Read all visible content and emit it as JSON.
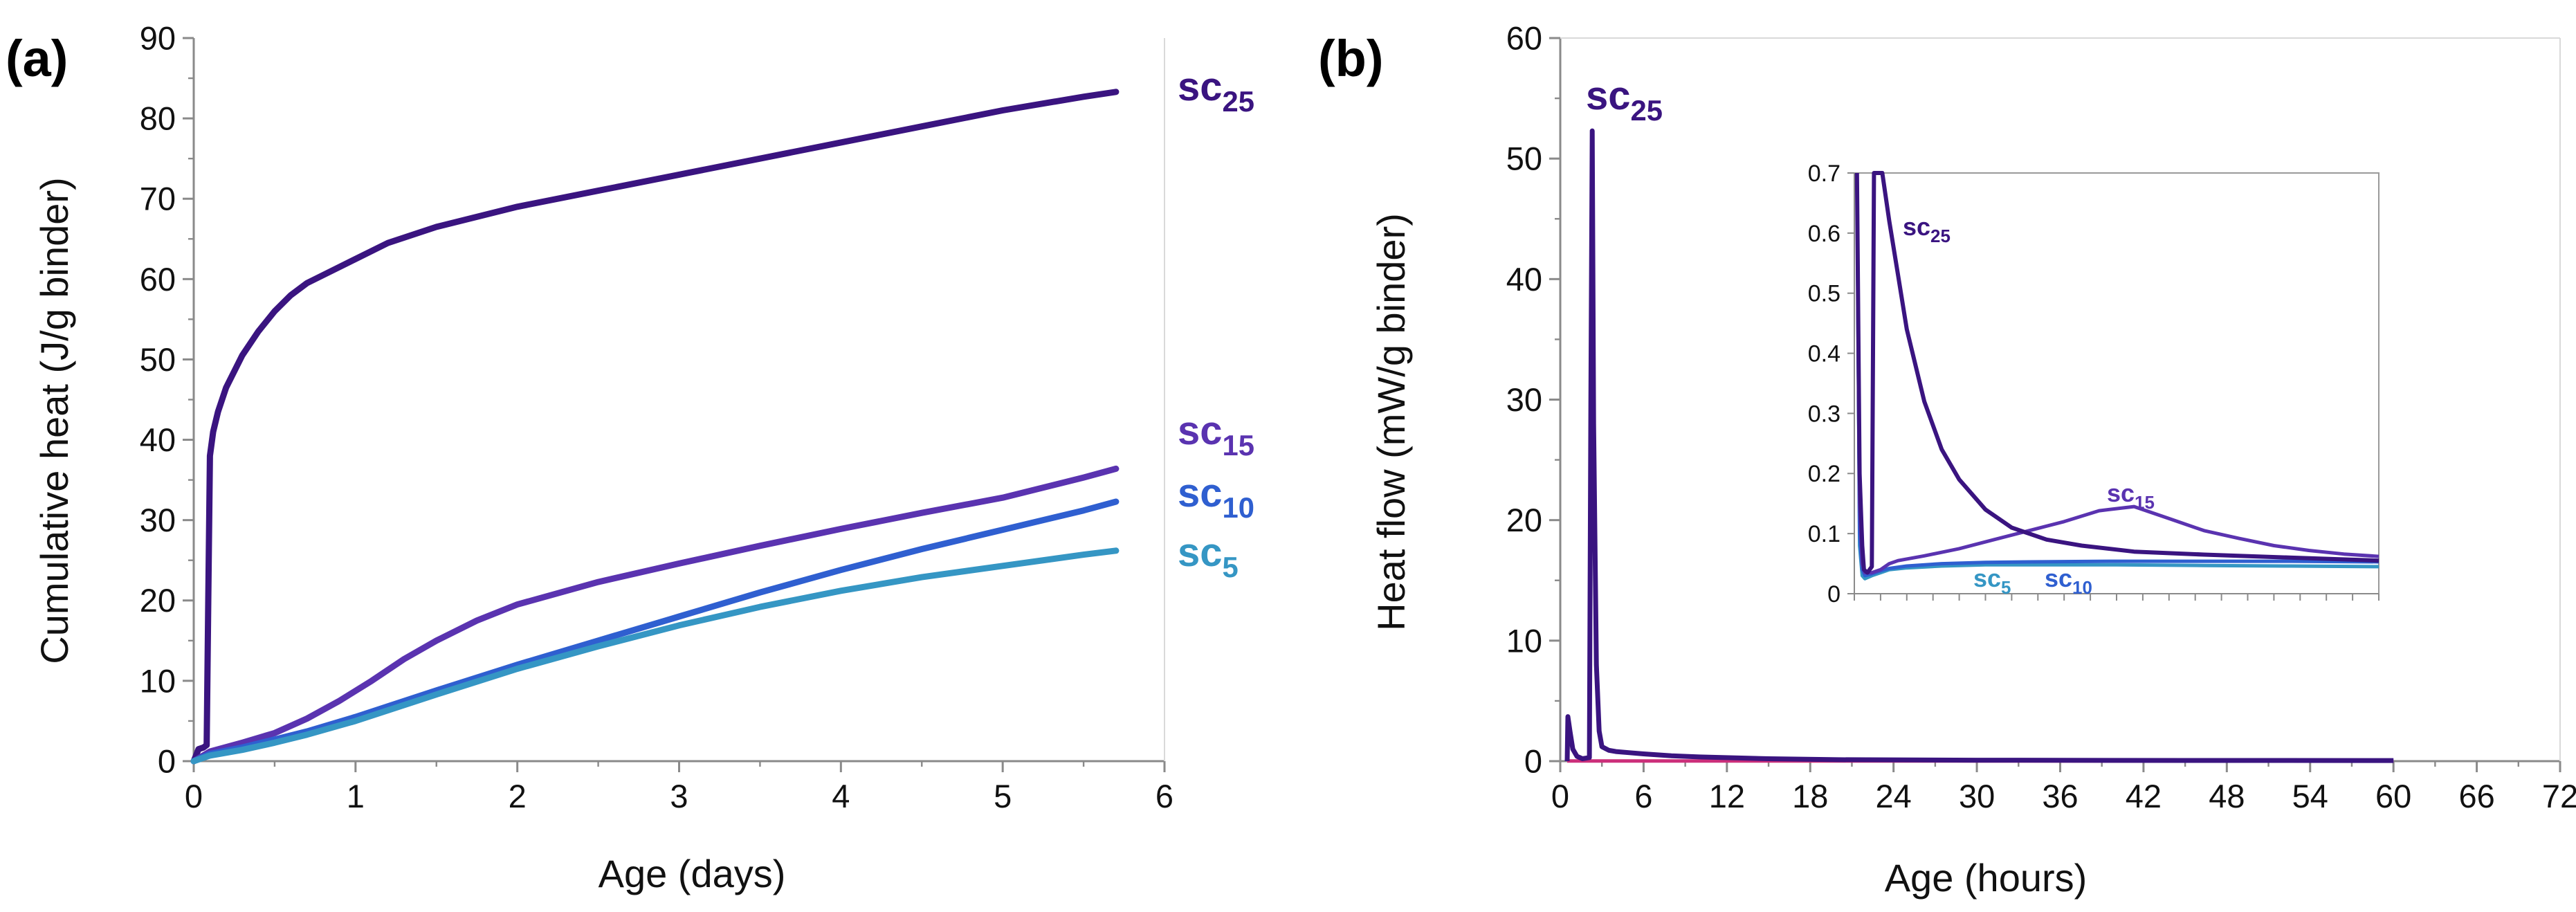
{
  "colors": {
    "sc25": "#3a1480",
    "sc15": "#5a33b0",
    "sc10": "#2f5fd0",
    "sc5": "#3596c4",
    "baseline": "#cc2f7a",
    "axis": "#8a8a8a"
  },
  "chart_data": [
    {
      "panel": "(a)",
      "type": "line",
      "xlabel": "Age (days)",
      "ylabel": "Cumulative heat (J/g binder)",
      "xlim": [
        0,
        6
      ],
      "ylim": [
        0,
        90
      ],
      "xticks": [
        "0",
        "1",
        "2",
        "3",
        "4",
        "5",
        "6"
      ],
      "yticks": [
        "0",
        "10",
        "20",
        "30",
        "40",
        "50",
        "60",
        "70",
        "80",
        "90"
      ],
      "grid": false,
      "series": [
        {
          "key": "sc25",
          "name": "sc",
          "subscript": "25",
          "x": [
            0,
            0.03,
            0.06,
            0.08,
            0.09,
            0.1,
            0.12,
            0.15,
            0.2,
            0.3,
            0.4,
            0.5,
            0.6,
            0.7,
            0.8,
            1.0,
            1.2,
            1.5,
            2.0,
            2.5,
            3.0,
            3.5,
            4.0,
            4.5,
            5.0,
            5.5,
            5.7
          ],
          "y": [
            0,
            1.5,
            1.7,
            2,
            20,
            38,
            41,
            43.5,
            46.5,
            50.5,
            53.5,
            56,
            58,
            59.5,
            60.5,
            62.5,
            64.5,
            66.5,
            69,
            71,
            73,
            75,
            77,
            79,
            81,
            82.7,
            83.3
          ]
        },
        {
          "key": "sc15",
          "name": "sc",
          "subscript": "15",
          "x": [
            0,
            0.1,
            0.3,
            0.5,
            0.7,
            0.9,
            1.1,
            1.3,
            1.5,
            1.75,
            2.0,
            2.5,
            3.0,
            3.5,
            4.0,
            4.5,
            5.0,
            5.5,
            5.7
          ],
          "y": [
            0,
            1.2,
            2.3,
            3.5,
            5.3,
            7.5,
            10,
            12.7,
            15,
            17.5,
            19.5,
            22.3,
            24.6,
            26.8,
            28.9,
            30.9,
            32.8,
            35.3,
            36.4
          ]
        },
        {
          "key": "sc10",
          "name": "sc",
          "subscript": "10",
          "x": [
            0,
            0.1,
            0.3,
            0.5,
            0.7,
            1.0,
            1.5,
            2.0,
            2.5,
            3.0,
            3.5,
            4.0,
            4.5,
            5.0,
            5.5,
            5.7
          ],
          "y": [
            0,
            0.9,
            1.7,
            2.7,
            3.7,
            5.5,
            8.8,
            12,
            15,
            18,
            21,
            23.8,
            26.4,
            28.8,
            31.2,
            32.3
          ]
        },
        {
          "key": "sc5",
          "name": "sc",
          "subscript": "5",
          "x": [
            0,
            0.1,
            0.3,
            0.5,
            0.7,
            1.0,
            1.5,
            2.0,
            2.5,
            3.0,
            3.5,
            4.0,
            4.5,
            5.0,
            5.5,
            5.7
          ],
          "y": [
            0,
            0.7,
            1.4,
            2.3,
            3.3,
            5,
            8.3,
            11.5,
            14.3,
            16.9,
            19.2,
            21.2,
            22.9,
            24.3,
            25.7,
            26.2
          ]
        }
      ]
    },
    {
      "panel": "(b)",
      "type": "line",
      "xlabel": "Age (hours)",
      "ylabel": "Heat flow (mW/g binder)",
      "xlim": [
        0,
        72
      ],
      "ylim": [
        0,
        60
      ],
      "xticks": [
        "0",
        "6",
        "12",
        "18",
        "24",
        "30",
        "36",
        "42",
        "48",
        "54",
        "60",
        "66",
        "72"
      ],
      "yticks": [
        "0",
        "10",
        "20",
        "30",
        "40",
        "50",
        "60"
      ],
      "grid": false,
      "series": [
        {
          "key": "sc25",
          "name": "sc",
          "subscript": "25",
          "x": [
            0.5,
            0.55,
            0.7,
            0.9,
            1.2,
            1.6,
            2.1,
            2.2,
            2.3,
            2.4,
            2.6,
            2.8,
            3.0,
            3.5,
            4.0,
            5.0,
            6.0,
            8.0,
            10.0,
            15.0,
            20.0,
            30.0,
            45.0,
            60.0
          ],
          "y": [
            0,
            3.7,
            2.5,
            1.0,
            0.4,
            0.2,
            0.3,
            30,
            52.3,
            28,
            8,
            2.5,
            1.2,
            0.9,
            0.8,
            0.7,
            0.6,
            0.45,
            0.35,
            0.2,
            0.12,
            0.08,
            0.06,
            0.05
          ]
        },
        {
          "key": "sc5",
          "name": "sc",
          "subscript": "5",
          "x": [
            0.5,
            60
          ],
          "y": [
            0.02,
            0.02
          ]
        }
      ],
      "inset": {
        "ylim": [
          0,
          0.7
        ],
        "yticks": [
          "0",
          "0.1",
          "0.2",
          "0.3",
          "0.4",
          "0.5",
          "0.6",
          "0.7"
        ],
        "series": [
          {
            "key": "sc25",
            "name": "sc",
            "subscript": "25",
            "x": [
              0.3,
              0.6,
              0.9,
              1.1,
              1.5,
              2.0,
              2.25,
              2.5,
              2.8,
              3.2,
              4.0,
              5.0,
              6.0,
              8.0,
              10.0,
              12.0,
              15.0,
              18.0,
              22.0,
              26.0,
              32.0,
              40.0,
              50.0,
              60.0
            ],
            "y": [
              0.7,
              0.2,
              0.08,
              0.04,
              0.035,
              0.045,
              0.7,
              0.7,
              0.7,
              0.7,
              0.62,
              0.53,
              0.44,
              0.32,
              0.24,
              0.19,
              0.14,
              0.11,
              0.09,
              0.08,
              0.07,
              0.065,
              0.06,
              0.055
            ]
          },
          {
            "key": "sc15",
            "name": "sc",
            "subscript": "15",
            "x": [
              0.3,
              0.6,
              0.9,
              1.2,
              2,
              3,
              4,
              5,
              8,
              12,
              16,
              20,
              24,
              28,
              32,
              36,
              40,
              44,
              48,
              52,
              56,
              60
            ],
            "y": [
              0.7,
              0.15,
              0.05,
              0.035,
              0.035,
              0.04,
              0.05,
              0.055,
              0.063,
              0.075,
              0.09,
              0.105,
              0.12,
              0.138,
              0.145,
              0.125,
              0.105,
              0.092,
              0.08,
              0.072,
              0.066,
              0.062
            ]
          },
          {
            "key": "sc10",
            "name": "sc",
            "subscript": "10",
            "x": [
              0.3,
              0.6,
              0.9,
              1.2,
              2,
              3,
              4,
              6,
              10,
              15,
              20,
              30,
              40,
              50,
              60
            ],
            "y": [
              0.7,
              0.1,
              0.04,
              0.03,
              0.033,
              0.038,
              0.042,
              0.046,
              0.05,
              0.052,
              0.053,
              0.054,
              0.054,
              0.054,
              0.053
            ]
          },
          {
            "key": "sc5",
            "name": "sc",
            "subscript": "5",
            "x": [
              0.3,
              0.6,
              0.9,
              1.2,
              2,
              3,
              4,
              6,
              10,
              15,
              20,
              30,
              40,
              50,
              60
            ],
            "y": [
              0.7,
              0.08,
              0.03,
              0.025,
              0.03,
              0.035,
              0.04,
              0.043,
              0.046,
              0.048,
              0.048,
              0.048,
              0.047,
              0.046,
              0.045
            ]
          }
        ],
        "labels": [
          {
            "key": "sc25",
            "name": "sc",
            "subscript": "25"
          },
          {
            "key": "sc15",
            "name": "sc",
            "subscript": "15"
          },
          {
            "key": "sc5",
            "name": "sc",
            "subscript": "5"
          },
          {
            "key": "sc10",
            "name": "sc",
            "subscript": "10"
          }
        ]
      }
    }
  ]
}
